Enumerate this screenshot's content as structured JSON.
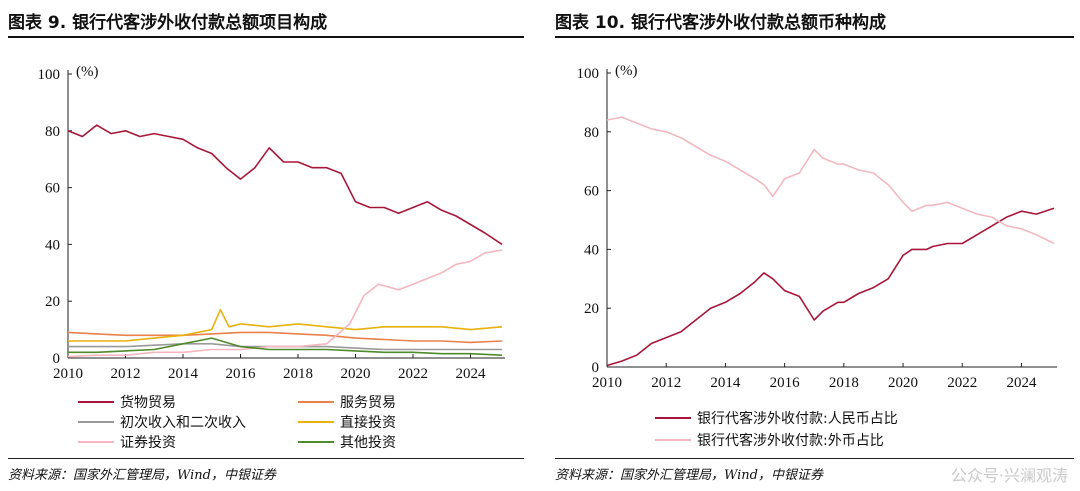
{
  "left": {
    "title": "图表 9. 银行代客涉外收付款总额项目构成",
    "source": "资料来源：国家外汇管理局，Wind，中银证券",
    "chart_data": {
      "type": "line",
      "ylabel": "(%)",
      "xlim": [
        2010,
        2025.2
      ],
      "ylim": [
        0,
        100
      ],
      "yticks": [
        0,
        20,
        40,
        60,
        80,
        100
      ],
      "xticks": [
        2010,
        2012,
        2014,
        2016,
        2018,
        2020,
        2022,
        2024
      ],
      "grid": false,
      "legend_position": "bottom",
      "series": [
        {
          "name": "货物贸易",
          "color": "#a8173a",
          "x": [
            2010,
            2010.5,
            2011,
            2011.5,
            2012,
            2012.5,
            2013,
            2013.5,
            2014,
            2014.5,
            2015,
            2015.5,
            2016,
            2016.5,
            2017,
            2017.5,
            2018,
            2018.5,
            2019,
            2019.5,
            2020,
            2020.5,
            2021,
            2021.5,
            2022,
            2022.5,
            2023,
            2023.5,
            2024,
            2024.5,
            2025.1
          ],
          "y": [
            80,
            78,
            82,
            79,
            80,
            78,
            79,
            78,
            77,
            74,
            72,
            67,
            63,
            67,
            74,
            69,
            69,
            67,
            67,
            65,
            55,
            53,
            53,
            51,
            53,
            55,
            52,
            50,
            47,
            44,
            40
          ]
        },
        {
          "name": "服务贸易",
          "color": "#e8824a",
          "x": [
            2010,
            2011,
            2012,
            2013,
            2014,
            2015,
            2016,
            2017,
            2018,
            2019,
            2020,
            2021,
            2022,
            2023,
            2024,
            2025.1
          ],
          "y": [
            9,
            8.5,
            8,
            8,
            8,
            8.5,
            9,
            9,
            8.5,
            8,
            7,
            6.5,
            6,
            6,
            5.5,
            6
          ]
        },
        {
          "name": "初次收入和二次收入",
          "color": "#9a9a9a",
          "x": [
            2010,
            2011,
            2012,
            2013,
            2014,
            2015,
            2016,
            2017,
            2018,
            2019,
            2020,
            2021,
            2022,
            2023,
            2024,
            2025.1
          ],
          "y": [
            4,
            4,
            4,
            4.5,
            5,
            5,
            4,
            4,
            4,
            4,
            3.5,
            3,
            3,
            3,
            3,
            3
          ]
        },
        {
          "name": "直接投资",
          "color": "#e8b10c",
          "x": [
            2010,
            2011,
            2012,
            2013,
            2014,
            2015,
            2015.3,
            2015.6,
            2016,
            2017,
            2018,
            2019,
            2020,
            2021,
            2022,
            2023,
            2024,
            2025.1
          ],
          "y": [
            6,
            6,
            6,
            7,
            8,
            10,
            17,
            11,
            12,
            11,
            12,
            11,
            10,
            11,
            11,
            11,
            10,
            11
          ]
        },
        {
          "name": "证券投资",
          "color": "#f4b6c0",
          "x": [
            2010,
            2011,
            2012,
            2013,
            2014,
            2015,
            2016,
            2017,
            2018,
            2019,
            2019.8,
            2020.3,
            2020.8,
            2021.5,
            2022,
            2022.5,
            2023,
            2023.5,
            2024,
            2024.5,
            2025.1
          ],
          "y": [
            0.5,
            1,
            1,
            2,
            2,
            3,
            3,
            4,
            4,
            5,
            12,
            22,
            26,
            24,
            26,
            28,
            30,
            33,
            34,
            37,
            38
          ]
        },
        {
          "name": "其他投资",
          "color": "#4f8a2b",
          "x": [
            2010,
            2011,
            2012,
            2013,
            2014,
            2015,
            2016,
            2017,
            2018,
            2019,
            2020,
            2021,
            2022,
            2023,
            2024,
            2025.1
          ],
          "y": [
            2,
            2,
            2.5,
            3,
            5,
            7,
            4,
            3,
            3,
            3,
            2.5,
            2,
            2,
            1.5,
            1.5,
            1
          ]
        }
      ]
    }
  },
  "right": {
    "title": "图表 10. 银行代客涉外收付款总额币种构成",
    "source": "资料来源：国家外汇管理局，Wind，中银证券",
    "watermark": "公众号·兴澜观涛",
    "chart_data": {
      "type": "line",
      "ylabel": "(%)",
      "xlim": [
        2010,
        2025.2
      ],
      "ylim": [
        0,
        100
      ],
      "yticks": [
        0,
        20,
        40,
        60,
        80,
        100
      ],
      "xticks": [
        2010,
        2012,
        2014,
        2016,
        2018,
        2020,
        2022,
        2024
      ],
      "grid": false,
      "legend_position": "bottom",
      "series": [
        {
          "name": "银行代客涉外收付款:人民币占比",
          "color": "#a8173a",
          "x": [
            2010,
            2010.5,
            2011,
            2011.5,
            2012,
            2012.5,
            2013,
            2013.5,
            2014,
            2014.5,
            2015,
            2015.3,
            2015.6,
            2016,
            2016.5,
            2017,
            2017.3,
            2017.8,
            2018,
            2018.5,
            2019,
            2019.5,
            2020,
            2020.3,
            2020.8,
            2021,
            2021.5,
            2022,
            2022.5,
            2023,
            2023.5,
            2024,
            2024.5,
            2025.1
          ],
          "y": [
            0.5,
            2,
            4,
            8,
            10,
            12,
            16,
            20,
            22,
            25,
            29,
            32,
            30,
            26,
            24,
            16,
            19,
            22,
            22,
            25,
            27,
            30,
            38,
            40,
            40,
            41,
            42,
            42,
            45,
            48,
            51,
            53,
            52,
            54
          ]
        },
        {
          "name": "银行代客涉外收付款:外币占比",
          "color": "#f2b8c0",
          "x": [
            2010,
            2010.5,
            2011,
            2011.5,
            2012,
            2012.5,
            2013,
            2013.5,
            2014,
            2014.5,
            2015,
            2015.3,
            2015.6,
            2016,
            2016.5,
            2017,
            2017.3,
            2017.8,
            2018,
            2018.5,
            2019,
            2019.5,
            2020,
            2020.3,
            2020.8,
            2021,
            2021.5,
            2022,
            2022.5,
            2023,
            2023.5,
            2024,
            2024.5,
            2025.1
          ],
          "y": [
            84,
            85,
            83,
            81,
            80,
            78,
            75,
            72,
            70,
            67,
            64,
            62,
            58,
            64,
            66,
            74,
            71,
            69,
            69,
            67,
            66,
            62,
            56,
            53,
            55,
            55,
            56,
            54,
            52,
            51,
            48,
            47,
            45,
            42
          ]
        }
      ]
    }
  }
}
